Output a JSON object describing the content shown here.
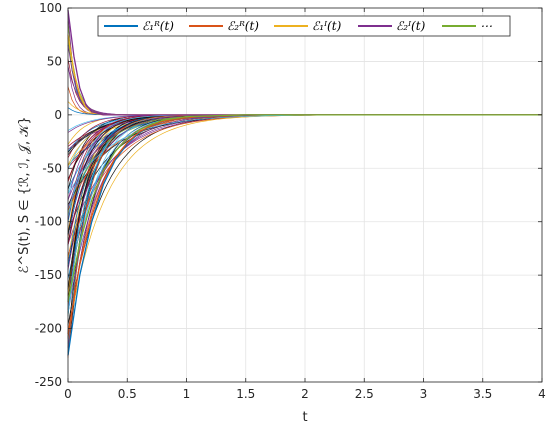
{
  "chart_data": {
    "type": "line",
    "title": "",
    "xlabel": "t",
    "ylabel": "ℰ^S(t), S ∈ {ℛ, ℐ, 𝒥, 𝒦}",
    "xlim": [
      0,
      4
    ],
    "ylim": [
      -250,
      100
    ],
    "xticks": [
      "0",
      "0.5",
      "1",
      "1.5",
      "2",
      "2.5",
      "3",
      "3.5",
      "4"
    ],
    "yticks": [
      "100",
      "50",
      "0",
      "-50",
      "-100",
      "-150",
      "-200",
      "-250"
    ],
    "grid": true,
    "legend_position": "top",
    "series": [
      {
        "name": "ℰ₁ᴿ(t)",
        "color": "#0072BD",
        "x": [
          0,
          0.1,
          0.2,
          0.3,
          0.4,
          0.5,
          0.6,
          0.7,
          0.8,
          1.0,
          1.5,
          2,
          3,
          4
        ],
        "values": [
          -225,
          -150,
          -100,
          -65,
          -42,
          -27,
          -17,
          -10,
          -6,
          -2,
          0,
          0,
          0,
          0
        ]
      },
      {
        "name": "ℰ₂ᴿ(t)",
        "color": "#D95319",
        "x": [
          0,
          0.1,
          0.2,
          0.3,
          0.4,
          0.5,
          0.6,
          0.7,
          0.8,
          1.0,
          1.5,
          2,
          3,
          4
        ],
        "values": [
          -205,
          -140,
          -95,
          -62,
          -40,
          -26,
          -16,
          -10,
          -6,
          -2,
          0,
          0,
          0,
          0
        ]
      },
      {
        "name": "ℰ₁ᴵ(t)",
        "color": "#EDB120",
        "x": [
          0,
          0.05,
          0.1,
          0.15,
          0.2,
          0.3,
          0.5,
          1,
          2,
          3,
          4
        ],
        "values": [
          75,
          40,
          18,
          7,
          2,
          0,
          0,
          0,
          0,
          0,
          0
        ]
      },
      {
        "name": "ℰ₂ᴵ(t)",
        "color": "#7E2F8E",
        "x": [
          0,
          0.05,
          0.1,
          0.15,
          0.2,
          0.3,
          0.5,
          1,
          2,
          3,
          4
        ],
        "values": [
          98,
          55,
          25,
          10,
          3,
          0,
          0,
          0,
          0,
          0,
          0
        ]
      },
      {
        "name": "⋯",
        "color": "#77AC30",
        "x": [
          0,
          0.1,
          0.2,
          0.3,
          0.4,
          0.5,
          0.6,
          0.7,
          0.8,
          1.0,
          1.5,
          2,
          3,
          4
        ],
        "values": [
          -175,
          -120,
          -80,
          -52,
          -34,
          -22,
          -14,
          -9,
          -5,
          -1.5,
          0,
          0,
          0,
          0
        ]
      }
    ]
  }
}
